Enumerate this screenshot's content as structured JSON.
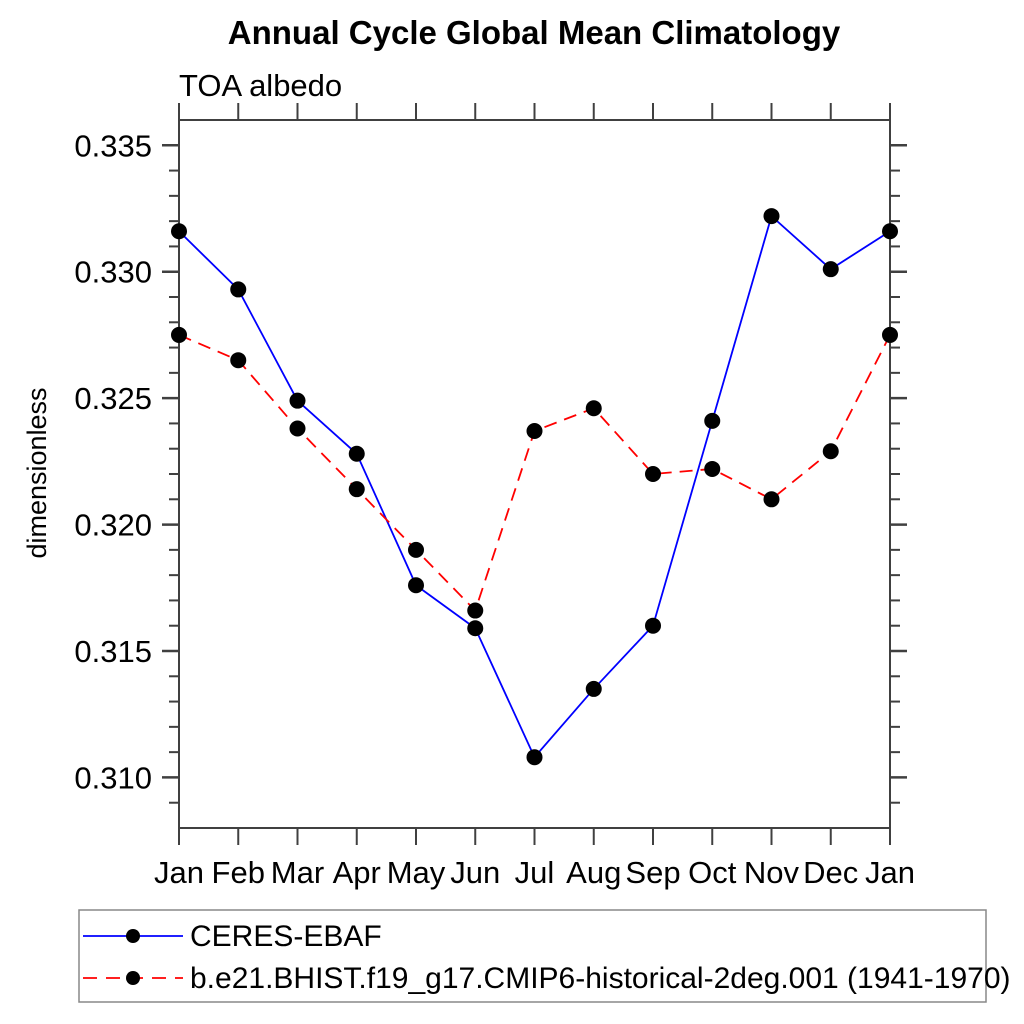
{
  "title": "Annual Cycle Global Mean Climatology",
  "subtitle": "TOA albedo",
  "chart_data": {
    "type": "line",
    "title": "Annual Cycle Global Mean Climatology",
    "subtitle": "TOA albedo",
    "xlabel": "",
    "ylabel": "dimensionless",
    "categories": [
      "Jan",
      "Feb",
      "Mar",
      "Apr",
      "May",
      "Jun",
      "Jul",
      "Aug",
      "Sep",
      "Oct",
      "Nov",
      "Dec",
      "Jan"
    ],
    "ylim": [
      0.308,
      0.336
    ],
    "ytick_major_start": 0.31,
    "ytick_major_end": 0.335,
    "ytick_major_step": 0.005,
    "ytick_minor_step": 0.001,
    "ytick_label_decimals": 3,
    "grid": "off",
    "legend_position": "bottom-left-box",
    "axis_color": "#404040",
    "marker_color": "#000000",
    "series": [
      {
        "name": "CERES-EBAF",
        "color": "#0000ff",
        "line_style": "solid",
        "marker": "circle",
        "values": [
          0.3316,
          0.3293,
          0.3249,
          0.3228,
          0.3176,
          0.3159,
          0.3108,
          0.3135,
          0.316,
          0.3241,
          0.3322,
          0.3301,
          0.3316
        ]
      },
      {
        "name": "b.e21.BHIST.f19_g17.CMIP6-historical-2deg.001 (1941-1970)",
        "color": "#ff0000",
        "line_style": "dashed",
        "marker": "circle",
        "values": [
          0.3275,
          0.3265,
          0.3238,
          0.3214,
          0.319,
          0.3166,
          0.3237,
          0.3246,
          0.322,
          0.3222,
          0.321,
          0.3229,
          0.3275
        ]
      }
    ]
  }
}
